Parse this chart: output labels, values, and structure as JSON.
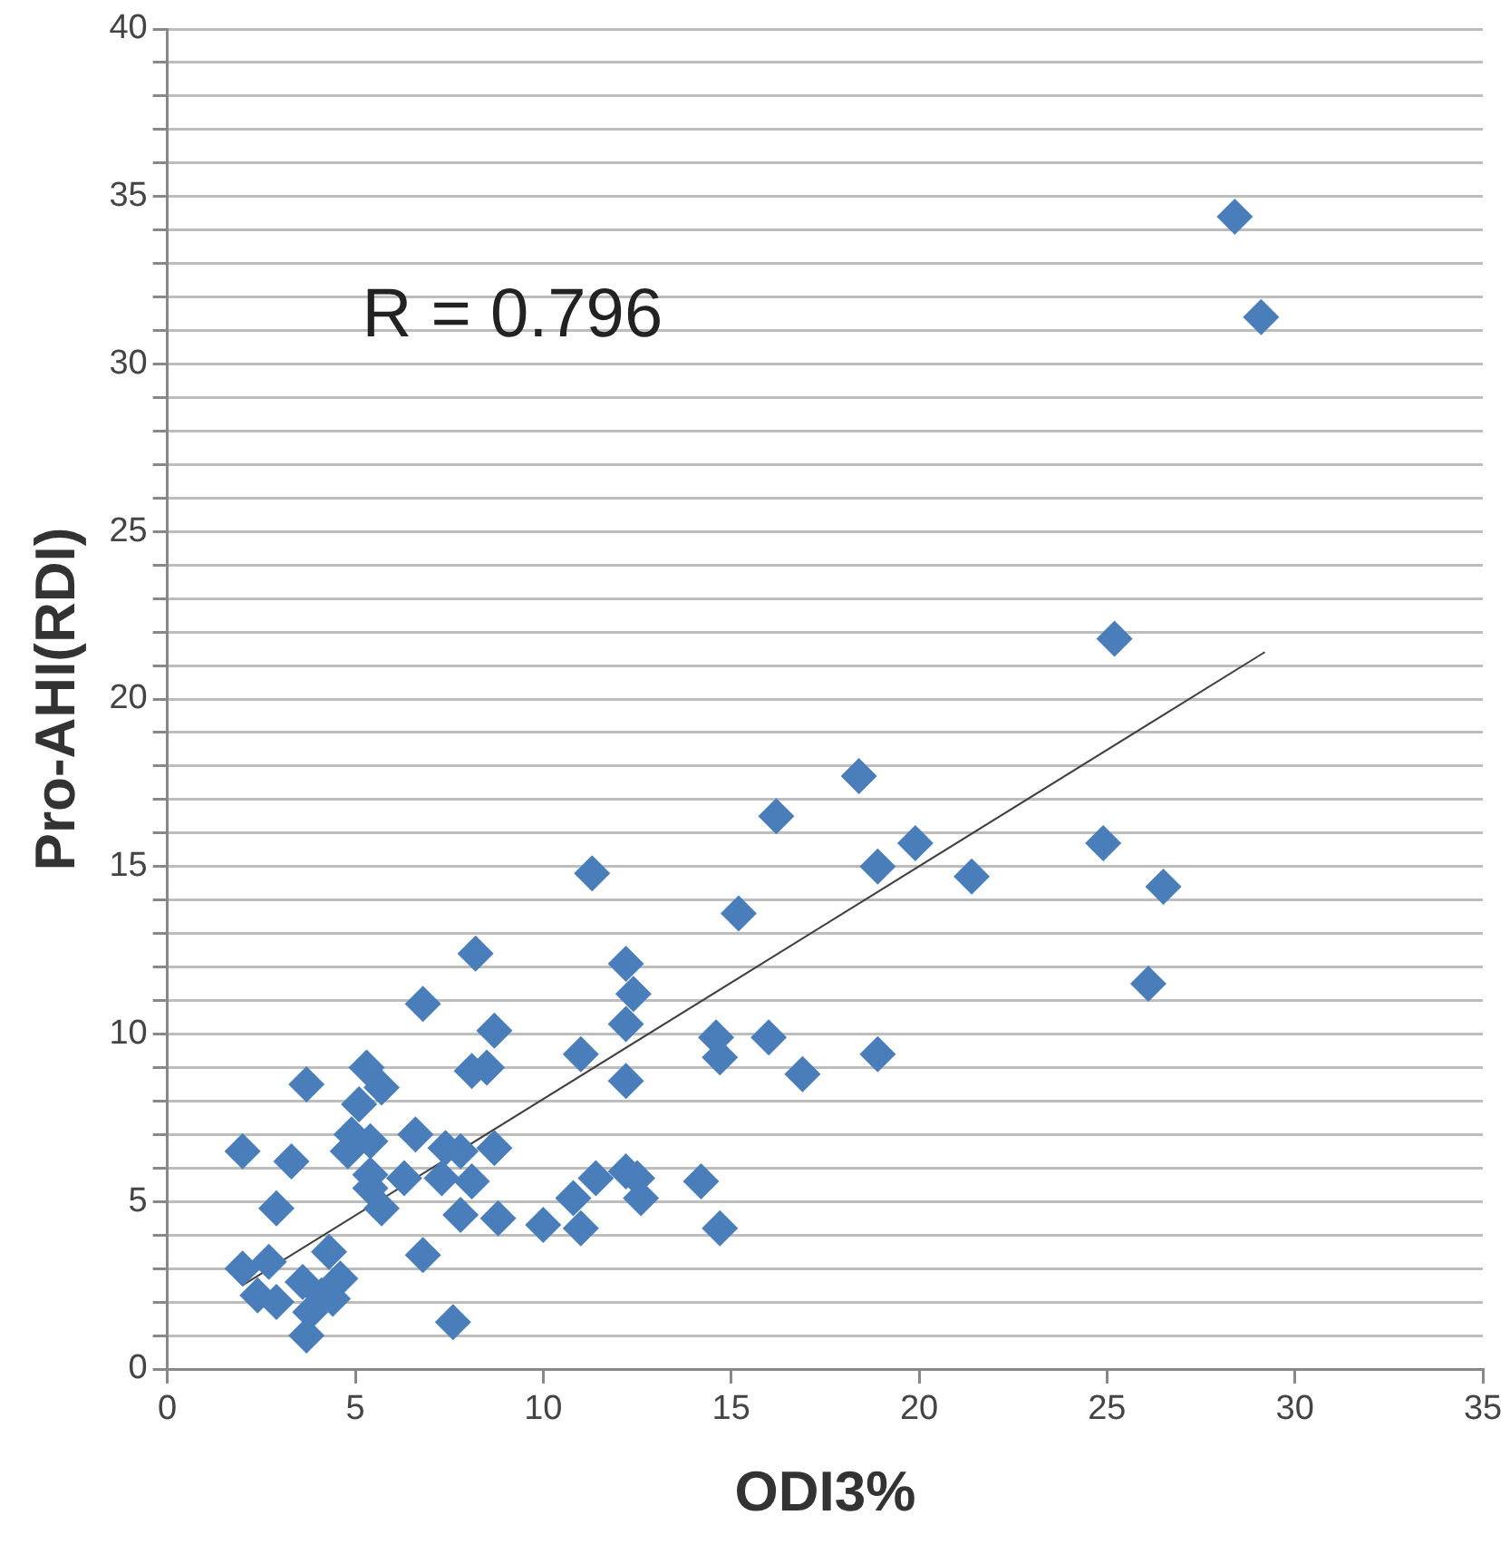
{
  "chart_data": {
    "type": "scatter",
    "xlabel": "ODI3%",
    "ylabel": "Pro-AHI(RDI)",
    "annotations": [
      "R = 0.796"
    ],
    "xlim": [
      0,
      35
    ],
    "xticks": [
      0,
      5,
      10,
      15,
      20,
      25,
      30,
      35
    ],
    "ylim": [
      0,
      40
    ],
    "yticks": [
      0,
      {
        "value": 1,
        "label": null
      },
      {
        "value": 2,
        "label": null
      },
      {
        "value": 3,
        "label": null
      },
      {
        "value": 4,
        "label": null
      },
      5,
      {
        "value": 6,
        "label": null
      },
      {
        "value": 7,
        "label": null
      },
      {
        "value": 8,
        "label": null
      },
      {
        "value": 9,
        "label": null
      },
      10,
      {
        "value": 11,
        "label": null
      },
      {
        "value": 12,
        "label": null
      },
      {
        "value": 13,
        "label": null
      },
      {
        "value": 14,
        "label": null
      },
      15,
      {
        "value": 16,
        "label": null
      },
      {
        "value": 17,
        "label": null
      },
      {
        "value": 18,
        "label": null
      },
      {
        "value": 19,
        "label": null
      },
      20,
      {
        "value": 21,
        "label": null
      },
      {
        "value": 22,
        "label": null
      },
      {
        "value": 23,
        "label": null
      },
      {
        "value": 24,
        "label": null
      },
      25,
      {
        "value": 26,
        "label": null
      },
      {
        "value": 27,
        "label": null
      },
      {
        "value": 28,
        "label": null
      },
      {
        "value": 29,
        "label": null
      },
      30,
      {
        "value": 31,
        "label": null
      },
      {
        "value": 32,
        "label": null
      },
      {
        "value": 33,
        "label": null
      },
      {
        "value": 34,
        "label": null
      },
      35,
      {
        "value": 36,
        "label": null
      },
      {
        "value": 37,
        "label": null
      },
      {
        "value": 38,
        "label": null
      },
      {
        "value": 39,
        "label": null
      },
      40
    ],
    "grid": "y",
    "legend": false,
    "marker": "diamond",
    "series": [
      {
        "color": "#4a7ebb",
        "x": [
          2.0,
          3.3,
          3.7,
          2.9,
          2.0,
          2.7,
          2.4,
          2.9,
          3.6,
          3.8,
          3.7,
          4.3,
          4.6,
          4.4,
          4.1,
          5.3,
          5.7,
          5.1,
          4.9,
          5.4,
          4.8,
          5.4,
          5.4,
          5.7,
          6.3,
          6.6,
          6.8,
          6.8,
          7.3,
          7.4,
          7.8,
          8.2,
          8.7,
          8.1,
          8.5,
          7.8,
          8.1,
          8.7,
          8.8,
          7.6,
          10.0,
          10.8,
          11.0,
          11.0,
          11.4,
          12.2,
          12.2,
          12.4,
          12.2,
          12.2,
          12.6,
          12.5,
          14.2,
          14.6,
          14.7,
          14.7,
          11.3,
          25.2,
          18.4,
          16.2,
          19.9,
          18.9,
          21.4,
          24.9,
          26.5,
          15.2,
          26.1,
          16.0,
          16.9,
          18.9,
          28.4,
          29.1
        ],
        "values": [
          6.5,
          6.2,
          8.5,
          4.8,
          3.0,
          3.2,
          2.2,
          2.0,
          2.6,
          1.7,
          1.0,
          3.5,
          2.7,
          2.1,
          2.2,
          9.0,
          8.4,
          7.9,
          7.0,
          6.8,
          6.5,
          5.8,
          5.4,
          4.8,
          5.7,
          7.0,
          10.9,
          3.4,
          5.7,
          6.6,
          6.5,
          12.4,
          10.1,
          8.9,
          9.0,
          4.6,
          5.6,
          6.6,
          4.5,
          1.4,
          4.3,
          5.1,
          4.2,
          9.4,
          5.7,
          8.6,
          12.1,
          11.2,
          10.3,
          5.9,
          5.1,
          5.7,
          5.6,
          9.9,
          9.3,
          4.2,
          14.8,
          21.8,
          17.7,
          16.5,
          15.7,
          15.0,
          14.7,
          15.7,
          14.4,
          13.6,
          11.5,
          9.9,
          8.8,
          9.4,
          34.4,
          31.4
        ]
      },
      {
        "type": "line",
        "color": "#404040",
        "marker": "none",
        "x": [
          2.0,
          29.2
        ],
        "values": [
          2.5,
          21.4
        ]
      }
    ]
  }
}
